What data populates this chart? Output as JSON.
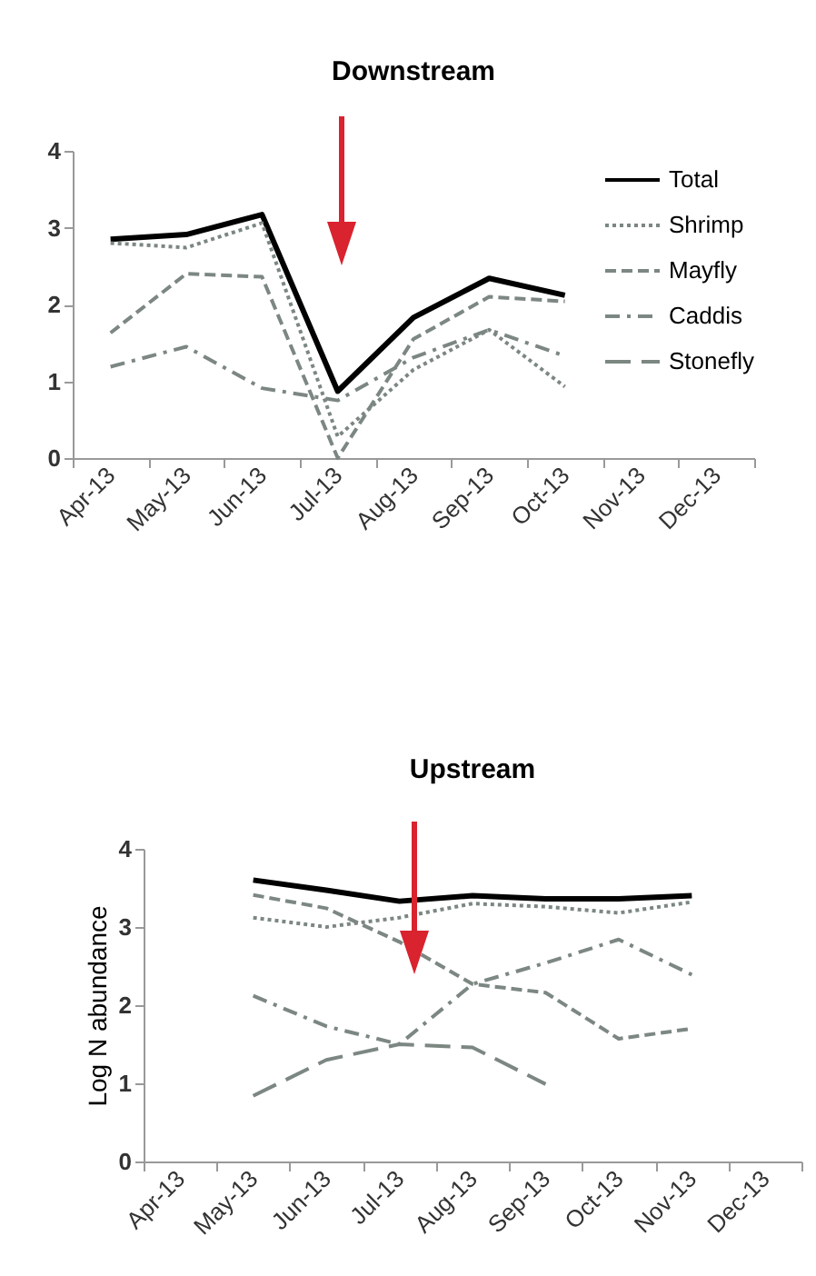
{
  "chart_data": [
    {
      "type": "line",
      "title": "Downstream",
      "categories": [
        "Apr-13",
        "May-13",
        "Jun-13",
        "Jul-13",
        "Aug-13",
        "Sep-13",
        "Oct-13",
        "Nov-13",
        "Dec-13"
      ],
      "ylim": [
        0,
        4
      ],
      "yticks": [
        0,
        1,
        2,
        3,
        4
      ],
      "grid": false,
      "legend": "top right",
      "marker": "none",
      "series": [
        {
          "name": "Total",
          "color": "#000000",
          "line_style": "solid",
          "values": [
            2.85,
            2.91,
            3.17,
            0.87,
            1.83,
            2.34,
            2.12,
            null,
            null
          ]
        },
        {
          "name": "Shrimp",
          "color": "#7c8782",
          "line_style": "dotted",
          "values": [
            2.8,
            2.74,
            3.06,
            0.28,
            1.15,
            1.67,
            0.93,
            null,
            null
          ]
        },
        {
          "name": "Mayfly",
          "color": "#7c8782",
          "line_style": "dashed",
          "values": [
            1.63,
            2.4,
            2.36,
            0.0,
            1.55,
            2.1,
            2.04,
            null,
            null
          ]
        },
        {
          "name": "Caddis",
          "color": "#7c8782",
          "line_style": "dashdot",
          "values": [
            1.19,
            1.45,
            0.91,
            0.75,
            1.31,
            1.67,
            1.33,
            null,
            null
          ]
        },
        {
          "name": "Stonefly",
          "color": "#7c8782",
          "line_style": "longdash",
          "values": [
            null,
            null,
            null,
            null,
            null,
            null,
            null,
            null,
            null
          ]
        }
      ]
    },
    {
      "type": "line",
      "title": "Upstream",
      "ylabel": "Log N abundance",
      "categories": [
        "Apr-13",
        "May-13",
        "Jun-13",
        "Jul-13",
        "Aug-13",
        "Sep-13",
        "Oct-13",
        "Nov-13",
        "Dec-13"
      ],
      "ylim": [
        0,
        4
      ],
      "yticks": [
        0,
        1,
        2,
        3,
        4
      ],
      "grid": false,
      "marker": "none",
      "series": [
        {
          "color": "#000000",
          "line_style": "solid",
          "values": [
            null,
            3.6,
            3.47,
            3.33,
            3.4,
            3.36,
            3.36,
            3.4,
            null
          ]
        },
        {
          "color": "#7c8782",
          "line_style": "dotted",
          "values": [
            null,
            3.12,
            3.0,
            3.12,
            3.3,
            3.26,
            3.18,
            3.32,
            null
          ]
        },
        {
          "color": "#7c8782",
          "line_style": "dashed",
          "values": [
            null,
            3.41,
            3.24,
            2.81,
            2.27,
            2.16,
            1.57,
            1.7,
            null
          ]
        },
        {
          "color": "#7c8782",
          "line_style": "dashdot",
          "values": [
            null,
            2.12,
            1.73,
            1.5,
            2.27,
            2.54,
            2.84,
            2.39,
            null
          ]
        },
        {
          "color": "#7c8782",
          "line_style": "longdash",
          "values": [
            null,
            0.84,
            1.3,
            1.5,
            1.46,
            0.99,
            null,
            null,
            null
          ]
        }
      ]
    }
  ]
}
